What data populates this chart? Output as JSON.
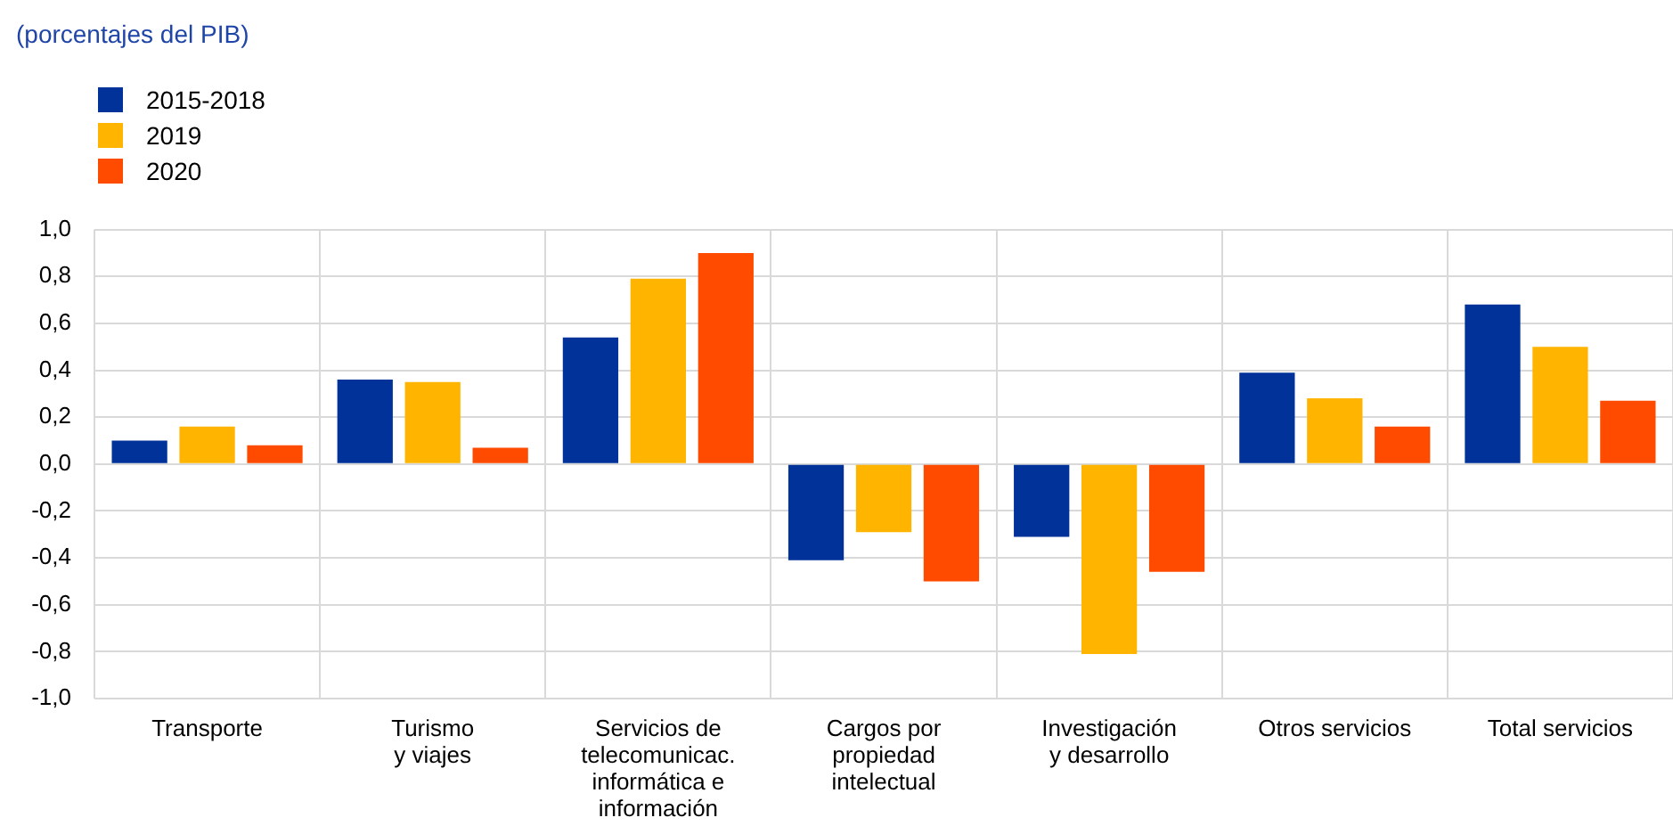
{
  "chart_data": {
    "type": "bar",
    "title": "(porcentajes del PIB)",
    "categories": [
      "Transporte",
      "Turismo\ny viajes",
      "Servicios de\ntelecomunicac.\ninformática e\ninformación",
      "Cargos por\npropiedad\nintelectual",
      "Investigación\ny desarrollo",
      "Otros servicios",
      "Total servicios"
    ],
    "series": [
      {
        "name": "2015-2018",
        "color": "#003299",
        "values": [
          0.1,
          0.36,
          0.54,
          -0.41,
          -0.31,
          0.39,
          0.68
        ]
      },
      {
        "name": "2019",
        "color": "#ffb400",
        "values": [
          0.16,
          0.35,
          0.79,
          -0.29,
          -0.81,
          0.28,
          0.5
        ]
      },
      {
        "name": "2020",
        "color": "#ff4b00",
        "values": [
          0.08,
          0.07,
          0.9,
          -0.5,
          -0.46,
          0.16,
          0.27
        ]
      }
    ],
    "ylim": [
      -1,
      1
    ],
    "yticks": [
      {
        "value": -1,
        "label": "-1,0"
      },
      {
        "value": -0.8,
        "label": "-0,8"
      },
      {
        "value": -0.6,
        "label": "-0,6"
      },
      {
        "value": -0.4,
        "label": "-0,4"
      },
      {
        "value": -0.2,
        "label": "-0,2"
      },
      {
        "value": 0,
        "label": "0,0"
      },
      {
        "value": 0.2,
        "label": "0,2"
      },
      {
        "value": 0.4,
        "label": "0,4"
      },
      {
        "value": 0.6,
        "label": "0,6"
      },
      {
        "value": 0.8,
        "label": "0,8"
      },
      {
        "value": 1,
        "label": "1,0"
      }
    ],
    "grid": true,
    "legend": "top left"
  }
}
